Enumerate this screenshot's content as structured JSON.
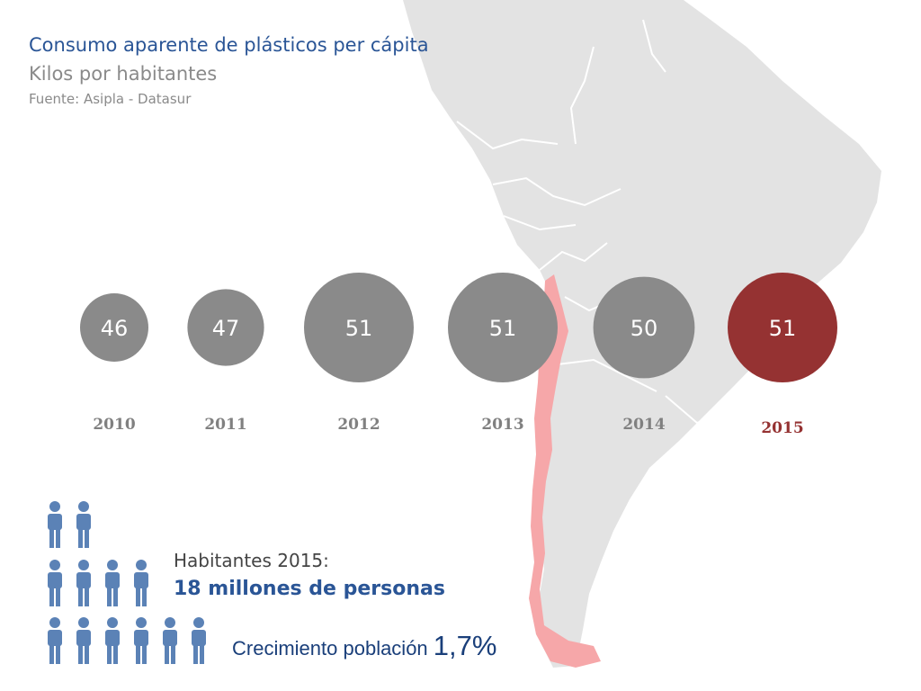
{
  "header": {
    "title": "Consumo aparente de plásticos per cápita",
    "subtitle": "Kilos por habitantes",
    "source": "Fuente: Asipla - Datasur"
  },
  "chart_data": {
    "type": "bubble",
    "title": "Consumo aparente de plásticos per cápita",
    "subtitle": "Kilos por habitantes",
    "categories": [
      "2010",
      "2011",
      "2012",
      "2013",
      "2014",
      "2015"
    ],
    "values": [
      46,
      47,
      51,
      51,
      50,
      51
    ],
    "highlight_category": "2015"
  },
  "population": {
    "label": "Habitantes 2015:",
    "value": "18 millones de personas",
    "growth_label": "Crecimiento población",
    "growth_value": "1,7%"
  },
  "colors": {
    "bubble": "#8a8a8a",
    "highlight": "#953232",
    "year_text": "#808080",
    "title": "#2a5596",
    "people_icon": "#5b82b6",
    "map_land": "#e3e3e3",
    "map_highlight": "#f6a7a9"
  },
  "icons": {
    "people": "person-icon",
    "map": "south-america-map"
  }
}
